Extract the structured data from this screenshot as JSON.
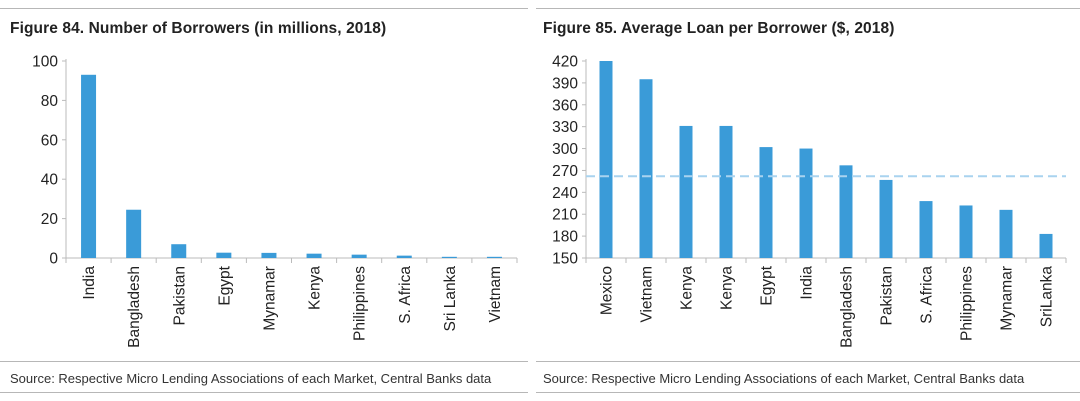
{
  "colors": {
    "bar": "#3a9bd8",
    "avg_line": "#a9d3ef",
    "axis": "#bbbbbb"
  },
  "chart_data": [
    {
      "type": "bar",
      "title": "Figure 84. Number of Borrowers (in millions, 2018)",
      "source": "Source: Respective Micro Lending Associations of each Market, Central Banks data",
      "categories": [
        "India",
        "Bangladesh",
        "Pakistan",
        "Egypt",
        "Mynamar",
        "Kenya",
        "Philippines",
        "S. Africa",
        "Sri Lanka",
        "Vietnam"
      ],
      "values": [
        93,
        24.5,
        7,
        2.7,
        2.6,
        2.2,
        1.7,
        1.2,
        0.6,
        0.6
      ],
      "ylim": [
        0,
        100
      ],
      "yticks": [
        "0",
        "20",
        "40",
        "60",
        "80",
        "100"
      ],
      "xlabel": "",
      "ylabel": "",
      "grid": false
    },
    {
      "type": "bar",
      "title": "Figure 85. Average Loan per Borrower ($, 2018)",
      "source": "Source: Respective Micro Lending Associations of each Market, Central Banks data",
      "categories": [
        "Mexico",
        "Vietnam",
        "Kenya",
        "Kenya",
        "Egypt",
        "India",
        "Bangladesh",
        "Pakistan",
        "S. Africa",
        "Philippines",
        "Mynamar",
        "SriLanka"
      ],
      "values": [
        420,
        395,
        331,
        331,
        302,
        300,
        277,
        257,
        228,
        222,
        216,
        183
      ],
      "ylim": [
        150,
        420
      ],
      "yticks": [
        "150",
        "180",
        "210",
        "240",
        "270",
        "300",
        "330",
        "360",
        "390",
        "420"
      ],
      "reference_line": 262,
      "xlabel": "",
      "ylabel": "",
      "grid": false
    }
  ]
}
